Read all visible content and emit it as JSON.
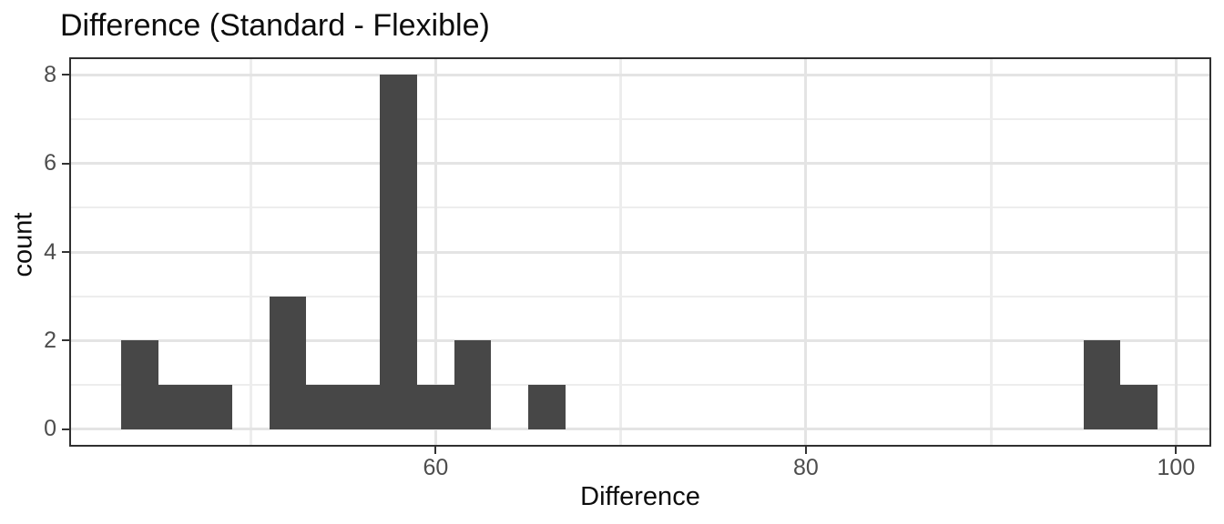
{
  "chart_data": {
    "type": "bar",
    "subtype": "histogram",
    "title": "Difference (Standard - Flexible)",
    "xlabel": "Difference",
    "ylabel": "count",
    "bin_start": 43,
    "bin_width": 2,
    "counts": [
      2,
      1,
      1,
      0,
      3,
      1,
      1,
      8,
      1,
      2,
      0,
      1,
      0,
      0,
      0,
      0,
      0,
      0,
      0,
      0,
      0,
      0,
      0,
      0,
      0,
      0,
      2,
      1
    ],
    "total_count": 24,
    "xlim": [
      40.2,
      101.9
    ],
    "ylim": [
      -0.4,
      8.4
    ],
    "x_major_ticks": [
      60,
      80,
      100
    ],
    "x_minor_gridlines": [
      50,
      70,
      90
    ],
    "y_major_ticks": [
      0,
      2,
      4,
      6,
      8
    ],
    "y_minor_gridlines": [
      1,
      3,
      5,
      7
    ],
    "x_tick_labels": [
      "60",
      "80",
      "100"
    ],
    "y_tick_labels": [
      "0",
      "2",
      "4",
      "6",
      "8"
    ],
    "grid": true,
    "legend": "none",
    "colors": {
      "bar_fill": "#474747",
      "panel_border": "#303030",
      "grid_major": "#E4E4E4",
      "grid_minor": "#EDEDED",
      "tick_mark": "#333333",
      "tick_label": "#4D4D4D",
      "title_text": "#0d0d0d",
      "background": "#FFFFFF"
    }
  }
}
